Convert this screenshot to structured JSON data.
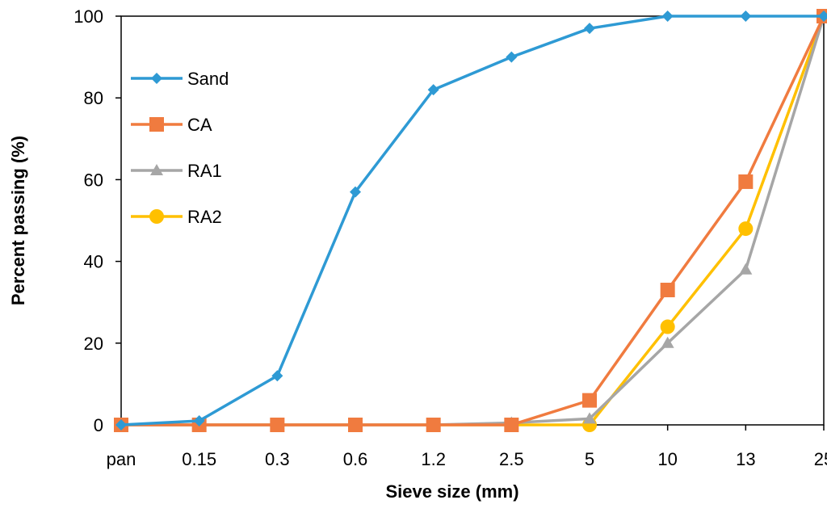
{
  "chart_data": {
    "type": "line",
    "title": "",
    "xlabel": "Sieve size (mm)",
    "ylabel": "Percent passing (%)",
    "categories": [
      "pan",
      "0.15",
      "0.3",
      "0.6",
      "1.2",
      "2.5",
      "5",
      "10",
      "13",
      "25"
    ],
    "ylim": [
      0,
      100
    ],
    "yticks": [
      0,
      20,
      40,
      60,
      80,
      100
    ],
    "grid": false,
    "legend_position": "top-left",
    "series": [
      {
        "name": "Sand",
        "color": "#2E9AD4",
        "marker": "diamond",
        "values": [
          0,
          1,
          12,
          57,
          82,
          90,
          97,
          100,
          100,
          100
        ]
      },
      {
        "name": "CA",
        "color": "#F07B3F",
        "marker": "square",
        "values": [
          0,
          0,
          0,
          0,
          0,
          0,
          6,
          33,
          59.5,
          100
        ]
      },
      {
        "name": "RA1",
        "color": "#A6A6A6",
        "marker": "triangle",
        "values": [
          0,
          0,
          0,
          0,
          0,
          0.5,
          1.5,
          20,
          38,
          100
        ]
      },
      {
        "name": "RA2",
        "color": "#FFC000",
        "marker": "circle",
        "values": [
          0,
          0,
          0,
          0,
          0,
          0,
          0,
          24,
          48,
          100
        ]
      }
    ]
  }
}
